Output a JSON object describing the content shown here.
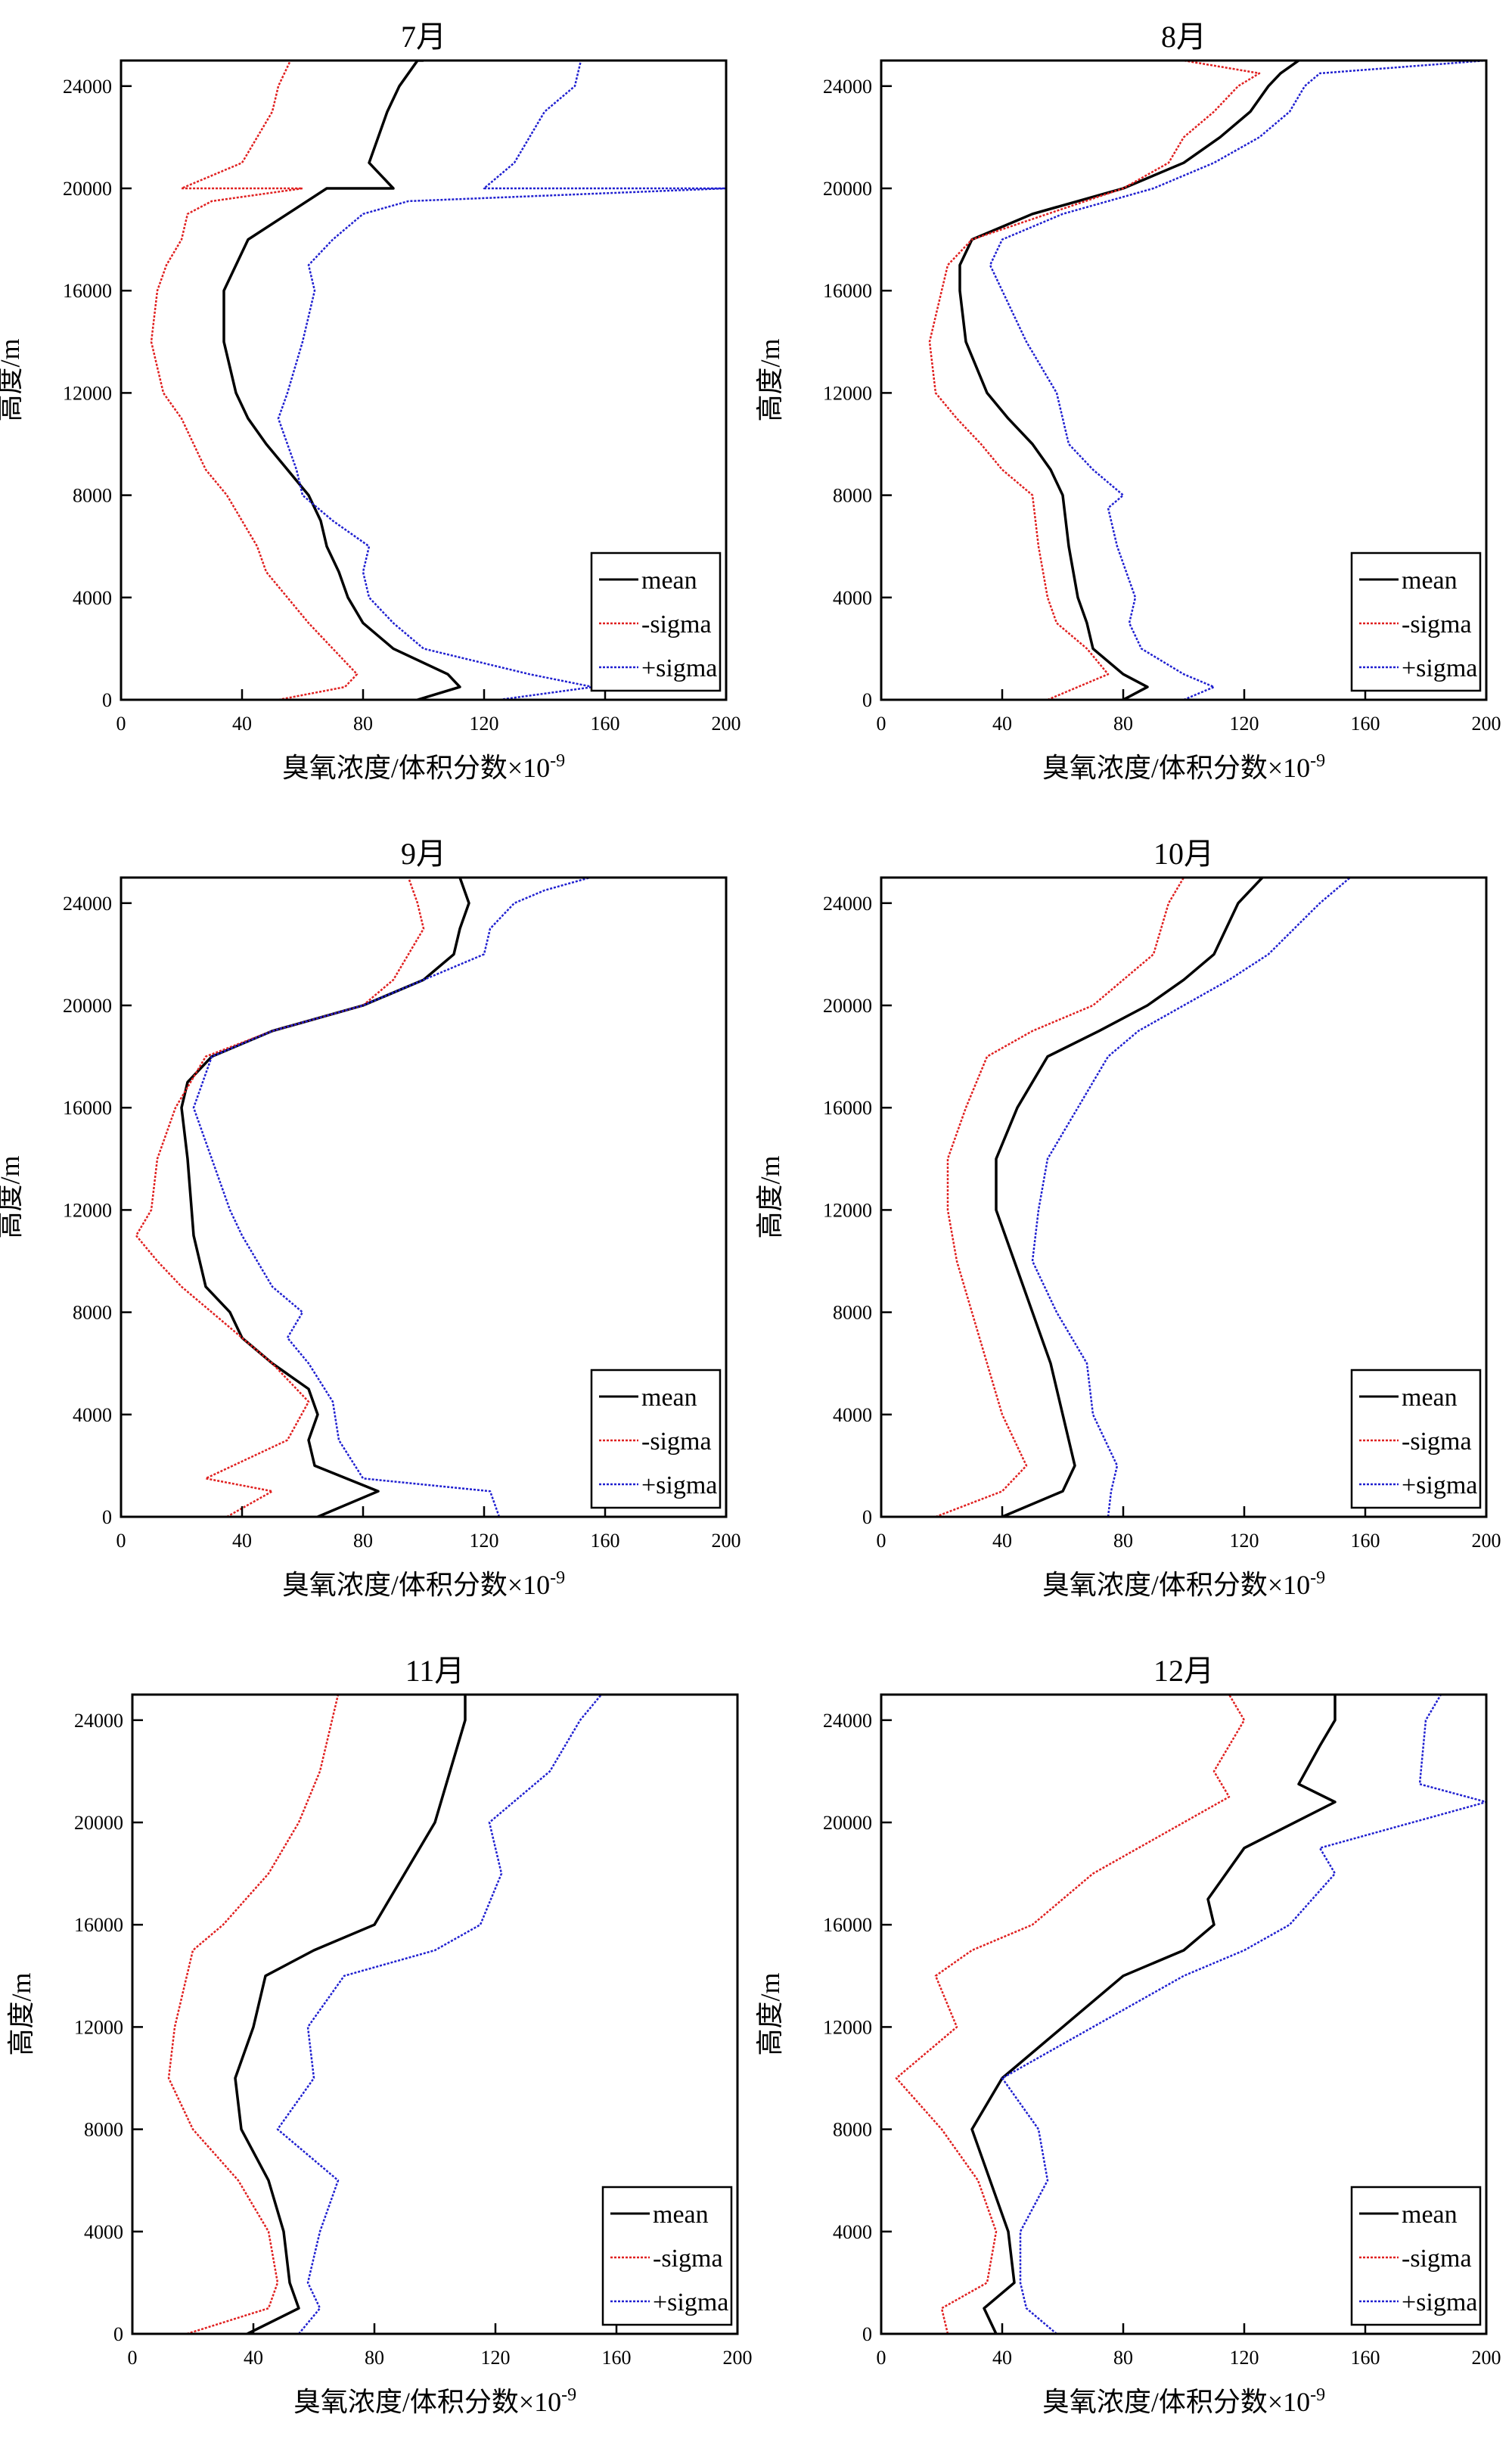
{
  "chart_data": [
    {
      "type": "line",
      "title": "7月",
      "xlabel": "臭氧浓度/体积分数×10",
      "xlabel_exp": "-9",
      "ylabel": "高度/m",
      "xlim": [
        0,
        200
      ],
      "ylim": [
        0,
        25000
      ],
      "xticks": [
        0,
        40,
        80,
        120,
        160,
        200
      ],
      "yticks": [
        0,
        4000,
        8000,
        12000,
        16000,
        20000,
        24000
      ],
      "legend": [
        "mean",
        "-sigma",
        "+sigma"
      ],
      "legend_position": "bottom-right",
      "series": [
        {
          "name": "mean",
          "color": "#000000",
          "style": "solid",
          "x": [
            98,
            112,
            108,
            90,
            80,
            75,
            72,
            68,
            66,
            62,
            55,
            48,
            42,
            38,
            34,
            34,
            38,
            42,
            55,
            68,
            90,
            82,
            85,
            88,
            92,
            98,
            100
          ],
          "y": [
            0,
            500,
            1000,
            2000,
            3000,
            4000,
            5000,
            6000,
            7000,
            8000,
            9000,
            10000,
            11000,
            12000,
            14000,
            16000,
            17000,
            18000,
            19000,
            20000,
            20000,
            21000,
            22000,
            23000,
            24000,
            25000,
            25000
          ]
        },
        {
          "name": "-sigma",
          "color": "#e02020",
          "style": "dotted",
          "x": [
            52,
            74,
            78,
            70,
            62,
            55,
            48,
            45,
            40,
            35,
            28,
            20,
            14,
            10,
            12,
            15,
            20,
            22,
            30,
            60,
            20,
            40,
            45,
            50,
            52,
            56,
            50
          ],
          "y": [
            0,
            500,
            1000,
            2000,
            3000,
            4000,
            5000,
            6000,
            7000,
            8000,
            9000,
            11000,
            12000,
            14000,
            16000,
            17000,
            18000,
            19000,
            19500,
            20000,
            20000,
            21000,
            22000,
            23000,
            24000,
            25000,
            25000
          ]
        },
        {
          "name": "+sigma",
          "color": "#2020d0",
          "style": "dotted",
          "x": [
            125,
            156,
            135,
            100,
            90,
            82,
            80,
            82,
            70,
            60,
            58,
            52,
            55,
            60,
            64,
            62,
            70,
            80,
            95,
            200,
            120,
            130,
            135,
            140,
            150,
            152,
            150
          ],
          "y": [
            0,
            500,
            1000,
            2000,
            3000,
            4000,
            5000,
            6000,
            7000,
            8000,
            9000,
            11000,
            12000,
            14000,
            16000,
            17000,
            18000,
            19000,
            19500,
            20000,
            20000,
            21000,
            22000,
            23000,
            24000,
            25000,
            25000
          ]
        }
      ]
    },
    {
      "type": "line",
      "title": "8月",
      "xlabel": "臭氧浓度/体积分数×10",
      "xlabel_exp": "-9",
      "ylabel": "高度/m",
      "xlim": [
        0,
        200
      ],
      "ylim": [
        0,
        25000
      ],
      "xticks": [
        0,
        40,
        80,
        120,
        160,
        200
      ],
      "yticks": [
        0,
        4000,
        8000,
        12000,
        16000,
        20000,
        24000
      ],
      "legend": [
        "mean",
        "-sigma",
        "+sigma"
      ],
      "legend_position": "bottom-right",
      "series": [
        {
          "name": "mean",
          "color": "#000000",
          "style": "solid",
          "x": [
            80,
            88,
            80,
            70,
            68,
            65,
            62,
            60,
            56,
            50,
            42,
            35,
            28,
            26,
            26,
            30,
            50,
            80,
            100,
            112,
            122,
            128,
            132,
            138
          ],
          "y": [
            0,
            500,
            1000,
            2000,
            3000,
            4000,
            6000,
            8000,
            9000,
            10000,
            11000,
            12000,
            14000,
            16000,
            17000,
            18000,
            19000,
            20000,
            21000,
            22000,
            23000,
            24000,
            24500,
            25000
          ]
        },
        {
          "name": "-sigma",
          "color": "#e02020",
          "style": "dotted",
          "x": [
            55,
            75,
            68,
            58,
            55,
            52,
            50,
            40,
            33,
            25,
            18,
            16,
            20,
            22,
            30,
            55,
            80,
            95,
            100,
            110,
            118,
            125,
            100
          ],
          "y": [
            0,
            1000,
            2000,
            3000,
            4000,
            6000,
            8000,
            9000,
            10000,
            11000,
            12000,
            14000,
            16000,
            17000,
            18000,
            19000,
            20000,
            21000,
            22000,
            23000,
            24000,
            24500,
            25000
          ]
        },
        {
          "name": "+sigma",
          "color": "#2020d0",
          "style": "dotted",
          "x": [
            100,
            110,
            100,
            86,
            82,
            84,
            78,
            75,
            80,
            70,
            62,
            58,
            48,
            40,
            36,
            40,
            60,
            90,
            110,
            125,
            135,
            140,
            145,
            200
          ],
          "y": [
            0,
            500,
            1000,
            2000,
            3000,
            4000,
            6000,
            7500,
            8000,
            9000,
            10000,
            12000,
            14000,
            16000,
            17000,
            18000,
            19000,
            20000,
            21000,
            22000,
            23000,
            24000,
            24500,
            25000
          ]
        }
      ]
    },
    {
      "type": "line",
      "title": "9月",
      "xlabel": "臭氧浓度/体积分数×10",
      "xlabel_exp": "-9",
      "ylabel": "高度/m",
      "xlim": [
        0,
        200
      ],
      "ylim": [
        0,
        25000
      ],
      "xticks": [
        0,
        40,
        80,
        120,
        160,
        200
      ],
      "yticks": [
        0,
        4000,
        8000,
        12000,
        16000,
        20000,
        24000
      ],
      "legend": [
        "mean",
        "-sigma",
        "+sigma"
      ],
      "legend_position": "bottom-right",
      "series": [
        {
          "name": "mean",
          "color": "#000000",
          "style": "solid",
          "x": [
            65,
            85,
            64,
            62,
            65,
            62,
            50,
            40,
            36,
            28,
            24,
            22,
            20,
            22,
            30,
            50,
            80,
            100,
            110,
            112,
            115,
            112
          ],
          "y": [
            0,
            1000,
            2000,
            3000,
            4000,
            5000,
            6000,
            7000,
            8000,
            9000,
            11000,
            14000,
            16000,
            17000,
            18000,
            19000,
            20000,
            21000,
            22000,
            23000,
            24000,
            25000
          ]
        },
        {
          "name": "-sigma",
          "color": "#e02020",
          "style": "dotted",
          "x": [
            35,
            50,
            28,
            55,
            62,
            50,
            40,
            30,
            20,
            12,
            5,
            10,
            12,
            18,
            28,
            50,
            80,
            90,
            95,
            100,
            98,
            95
          ],
          "y": [
            0,
            1000,
            1500,
            3000,
            4500,
            6000,
            7000,
            8000,
            9000,
            10000,
            11000,
            12000,
            14000,
            16000,
            18000,
            19000,
            20000,
            21000,
            22000,
            23000,
            24000,
            25000
          ]
        },
        {
          "name": "+sigma",
          "color": "#2020d0",
          "style": "dotted",
          "x": [
            125,
            122,
            80,
            72,
            70,
            62,
            55,
            60,
            50,
            40,
            36,
            30,
            24,
            30,
            50,
            80,
            100,
            120,
            122,
            130,
            140,
            155
          ],
          "y": [
            0,
            1000,
            1500,
            3000,
            4500,
            6000,
            7000,
            8000,
            9000,
            11000,
            12000,
            14000,
            16000,
            18000,
            19000,
            20000,
            21000,
            22000,
            23000,
            24000,
            24500,
            25000
          ]
        }
      ]
    },
    {
      "type": "line",
      "title": "10月",
      "xlabel": "臭氧浓度/体积分数×10",
      "xlabel_exp": "-9",
      "ylabel": "高度/m",
      "xlim": [
        0,
        200
      ],
      "ylim": [
        0,
        25000
      ],
      "xticks": [
        0,
        40,
        80,
        120,
        160,
        200
      ],
      "yticks": [
        0,
        4000,
        8000,
        12000,
        16000,
        20000,
        24000
      ],
      "legend": [
        "mean",
        "-sigma",
        "+sigma"
      ],
      "legend_position": "bottom-right",
      "series": [
        {
          "name": "mean",
          "color": "#000000",
          "style": "solid",
          "x": [
            40,
            60,
            64,
            60,
            56,
            50,
            44,
            38,
            38,
            45,
            55,
            72,
            88,
            100,
            110,
            118,
            126
          ],
          "y": [
            0,
            1000,
            2000,
            4000,
            6000,
            8000,
            10000,
            12000,
            14000,
            16000,
            18000,
            19000,
            20000,
            21000,
            22000,
            24000,
            25000
          ]
        },
        {
          "name": "-sigma",
          "color": "#e02020",
          "style": "dotted",
          "x": [
            18,
            40,
            48,
            40,
            35,
            30,
            25,
            22,
            22,
            28,
            35,
            50,
            70,
            80,
            90,
            95,
            100
          ],
          "y": [
            0,
            1000,
            2000,
            4000,
            6000,
            8000,
            10000,
            12000,
            14000,
            16000,
            18000,
            19000,
            20000,
            21000,
            22000,
            24000,
            25000
          ]
        },
        {
          "name": "+sigma",
          "color": "#2020d0",
          "style": "dotted",
          "x": [
            75,
            76,
            78,
            70,
            68,
            58,
            50,
            52,
            55,
            65,
            75,
            85,
            100,
            115,
            128,
            145,
            155
          ],
          "y": [
            0,
            1000,
            2000,
            4000,
            6000,
            8000,
            10000,
            12000,
            14000,
            16000,
            18000,
            19000,
            20000,
            21000,
            22000,
            24000,
            25000
          ]
        }
      ]
    },
    {
      "type": "line",
      "title": "11月",
      "xlabel": "臭氧浓度/体积分数×10",
      "xlabel_exp": "-9",
      "ylabel": "高度/m",
      "xlim": [
        0,
        200
      ],
      "ylim": [
        0,
        25000
      ],
      "xticks": [
        0,
        40,
        80,
        120,
        160,
        200
      ],
      "yticks": [
        0,
        4000,
        8000,
        12000,
        16000,
        20000,
        24000
      ],
      "legend": [
        "mean",
        "-sigma",
        "+sigma"
      ],
      "legend_position": "bottom-right",
      "series": [
        {
          "name": "mean",
          "color": "#000000",
          "style": "solid",
          "x": [
            38,
            55,
            52,
            50,
            45,
            36,
            34,
            40,
            44,
            60,
            80,
            90,
            100,
            105,
            110,
            110
          ],
          "y": [
            0,
            1000,
            2000,
            4000,
            6000,
            8000,
            10000,
            12000,
            14000,
            15000,
            16000,
            18000,
            20000,
            22000,
            24000,
            25000
          ]
        },
        {
          "name": "-sigma",
          "color": "#e02020",
          "style": "dotted",
          "x": [
            18,
            45,
            48,
            45,
            35,
            20,
            12,
            14,
            18,
            20,
            30,
            45,
            55,
            62,
            66,
            68
          ],
          "y": [
            0,
            1000,
            2000,
            4000,
            6000,
            8000,
            10000,
            12000,
            14000,
            15000,
            16000,
            18000,
            20000,
            22000,
            24000,
            25000
          ]
        },
        {
          "name": "+sigma",
          "color": "#2020d0",
          "style": "dotted",
          "x": [
            55,
            62,
            58,
            62,
            68,
            48,
            60,
            58,
            70,
            100,
            115,
            122,
            118,
            138,
            148,
            155
          ],
          "y": [
            0,
            1000,
            2000,
            4000,
            6000,
            8000,
            10000,
            12000,
            14000,
            15000,
            16000,
            18000,
            20000,
            22000,
            24000,
            25000
          ]
        }
      ]
    },
    {
      "type": "line",
      "title": "12月",
      "xlabel": "臭氧浓度/体积分数×10",
      "xlabel_exp": "-9",
      "ylabel": "高度/m",
      "xlim": [
        0,
        200
      ],
      "ylim": [
        0,
        25000
      ],
      "xticks": [
        0,
        40,
        80,
        120,
        160,
        200
      ],
      "yticks": [
        0,
        4000,
        8000,
        12000,
        16000,
        20000,
        24000
      ],
      "legend": [
        "mean",
        "-sigma",
        "+sigma"
      ],
      "legend_position": "bottom-right",
      "series": [
        {
          "name": "mean",
          "color": "#000000",
          "style": "solid",
          "x": [
            38,
            34,
            44,
            42,
            36,
            30,
            40,
            60,
            80,
            100,
            110,
            108,
            120,
            150,
            138,
            145,
            150,
            150
          ],
          "y": [
            0,
            1000,
            2000,
            4000,
            6000,
            8000,
            10000,
            12000,
            14000,
            15000,
            16000,
            17000,
            19000,
            20800,
            21500,
            23000,
            24000,
            25000
          ]
        },
        {
          "name": "-sigma",
          "color": "#e02020",
          "style": "dotted",
          "x": [
            22,
            20,
            35,
            38,
            32,
            20,
            5,
            25,
            18,
            30,
            50,
            70,
            100,
            115,
            110,
            120,
            115
          ],
          "y": [
            0,
            1000,
            2000,
            4000,
            6000,
            8000,
            10000,
            12000,
            14000,
            15000,
            16000,
            18000,
            20000,
            21000,
            22000,
            24000,
            25000
          ]
        },
        {
          "name": "+sigma",
          "color": "#2020d0",
          "style": "dotted",
          "x": [
            58,
            48,
            46,
            46,
            55,
            52,
            40,
            70,
            100,
            120,
            135,
            150,
            145,
            200,
            178,
            180,
            185
          ],
          "y": [
            0,
            1000,
            2000,
            4000,
            6000,
            8000,
            10000,
            12000,
            14000,
            15000,
            16000,
            18000,
            19000,
            20800,
            21500,
            24000,
            25000
          ]
        }
      ]
    }
  ]
}
